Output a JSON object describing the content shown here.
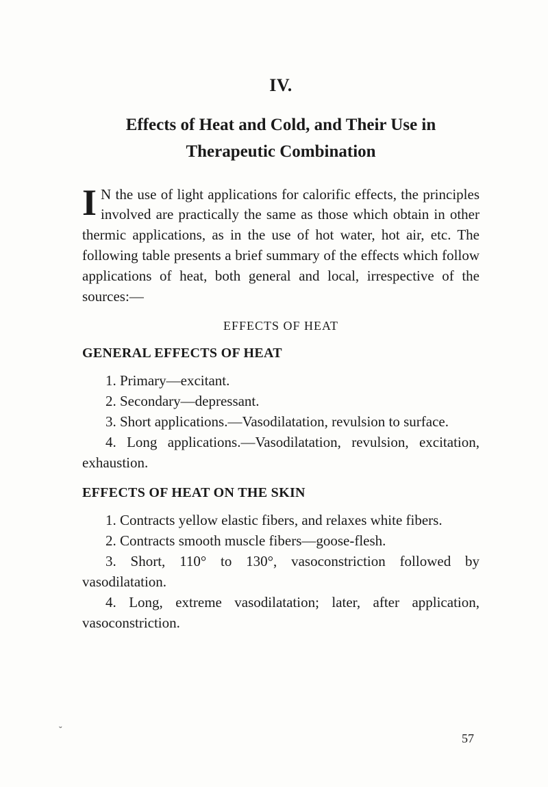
{
  "chapter": {
    "number": "IV.",
    "title_line1": "Effects of Heat and Cold, and Their Use in",
    "title_line2": "Therapeutic Combination"
  },
  "intro": {
    "dropcap": "I",
    "text": "N the use of light applications for calorific effects, the principles involved are practically the same as those which obtain in other thermic applications, as in the use of hot water, hot air, etc. The following table presents a brief summary of the effects which follow applications of heat, both general and local, irrespective of the sources:—"
  },
  "effects_heading": "EFFECTS OF HEAT",
  "general": {
    "heading": "GENERAL EFFECTS OF HEAT",
    "items": [
      "1.  Primary—excitant.",
      "2.  Secondary—depressant.",
      "3.  Short applications.—Vasodilatation, revulsion to surface.",
      "4.  Long applications.—Vasodilatation, revulsion, excitation, exhaustion."
    ]
  },
  "skin": {
    "heading": "EFFECTS OF HEAT ON THE SKIN",
    "items": [
      "1.  Contracts yellow elastic fibers, and relaxes white fibers.",
      "2.  Contracts smooth muscle fibers—goose-flesh.",
      "3.  Short, 110° to 130°, vasoconstriction followed by vasodilatation.",
      "4.  Long, extreme vasodilatation; later, after application, vasoconstriction."
    ]
  },
  "page_number": "57",
  "tick": "˘"
}
